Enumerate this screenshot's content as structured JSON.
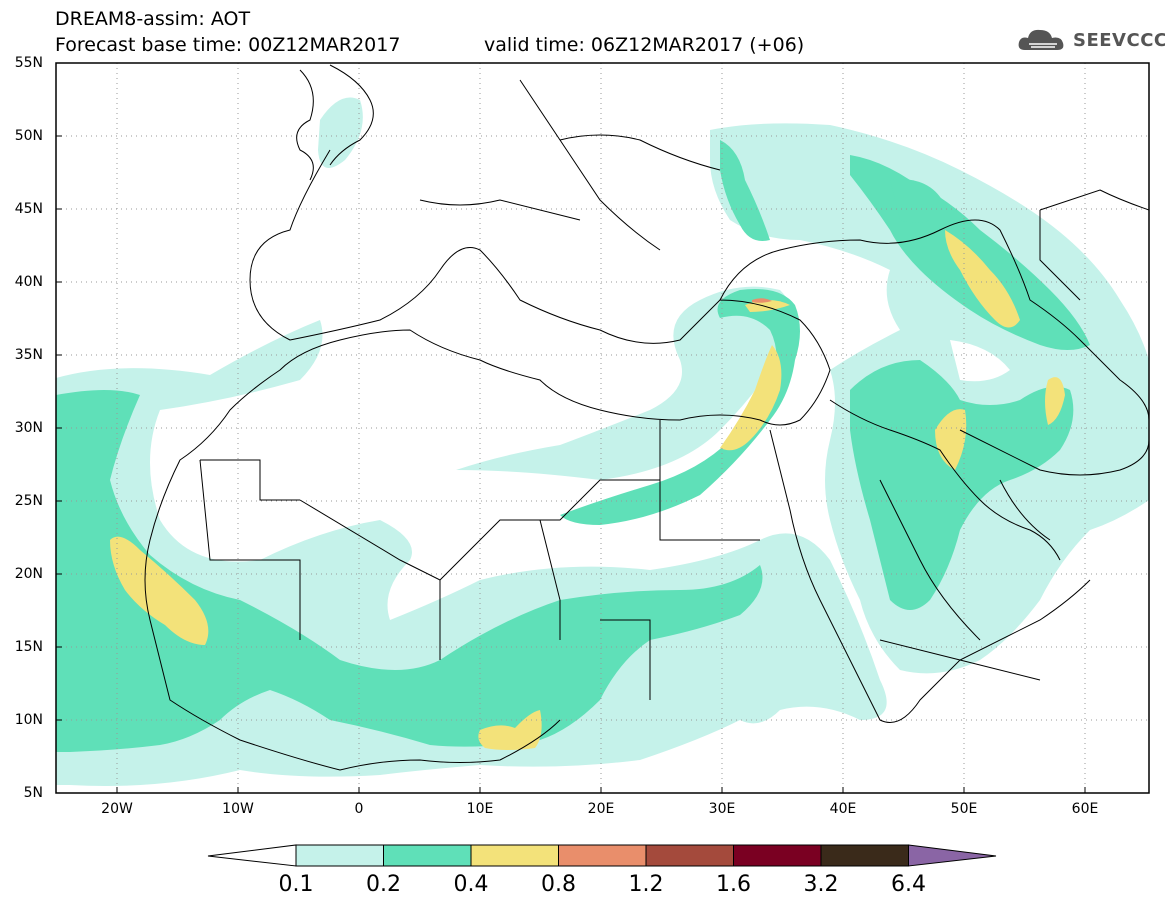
{
  "title": {
    "line1": "DREAM8-assim: AOT",
    "base_time": "Forecast base time: 00Z12MAR2017",
    "valid_time": "valid time: 06Z12MAR2017 (+06)"
  },
  "logo": {
    "text": "SEEVCCC",
    "icon": "cloud-icon"
  },
  "map": {
    "lon_range": [
      -25,
      65
    ],
    "lat_range": [
      5,
      55
    ],
    "lat_labels": [
      "55N",
      "50N",
      "45N",
      "40N",
      "35N",
      "30N",
      "25N",
      "20N",
      "15N",
      "10N",
      "5N"
    ],
    "lon_labels": [
      "20W",
      "10W",
      "0",
      "10E",
      "20E",
      "30E",
      "40E",
      "50E",
      "60E"
    ]
  },
  "colorbar": {
    "labels": [
      "0.1",
      "0.2",
      "0.4",
      "0.8",
      "1.2",
      "1.6",
      "3.2",
      "6.4"
    ],
    "colors": [
      "#ffffff",
      "#c5f2ea",
      "#5fe0b8",
      "#f3e27a",
      "#e98e6b",
      "#a44a3c",
      "#7a0022",
      "#3a2a1a",
      "#8a65a5"
    ]
  }
}
